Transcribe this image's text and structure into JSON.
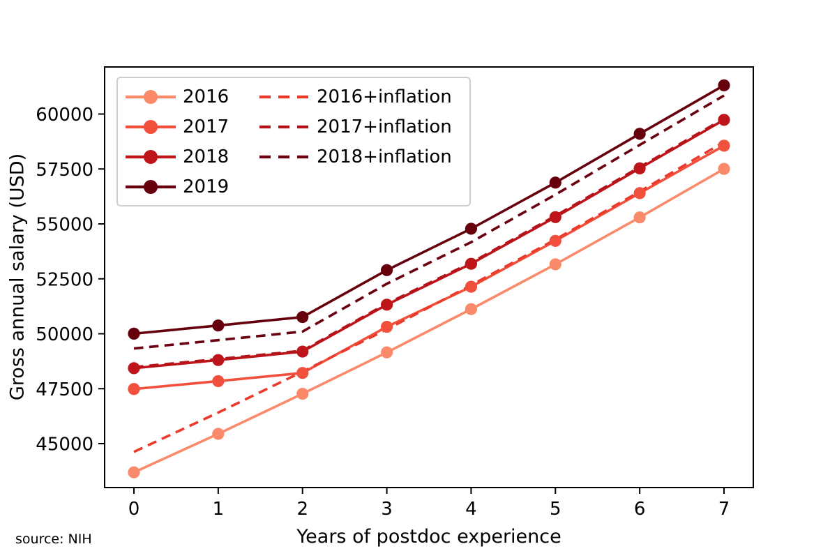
{
  "source_note": "source: NIH",
  "chart_data": {
    "type": "line",
    "title": "",
    "xlabel": "Years of postdoc experience",
    "ylabel": "Gross annual salary (USD)",
    "x": [
      0,
      1,
      2,
      3,
      4,
      5,
      6,
      7
    ],
    "x_tick_labels": [
      "0",
      "1",
      "2",
      "3",
      "4",
      "5",
      "6",
      "7"
    ],
    "y_ticks": [
      45000,
      47500,
      50000,
      52500,
      55000,
      57500,
      60000
    ],
    "y_tick_labels": [
      "45000",
      "47500",
      "50000",
      "52500",
      "55000",
      "57500",
      "60000"
    ],
    "xlim": [
      -0.3475,
      7.3475
    ],
    "ylim": [
      43000,
      62143
    ],
    "grid": false,
    "legend_position": "upper left",
    "legend_columns": [
      [
        0,
        1,
        2,
        3
      ],
      [
        4,
        5,
        6
      ]
    ],
    "series": [
      {
        "name": "2016",
        "style": "solid",
        "marker": true,
        "color": "#fb8a6a",
        "values": [
          43692,
          45444,
          47268,
          49152,
          51120,
          53160,
          55296,
          57504
        ]
      },
      {
        "name": "2017",
        "style": "solid",
        "marker": true,
        "color": "#f1503c",
        "values": [
          47484,
          47844,
          48216,
          50316,
          52140,
          54228,
          56400,
          58560
        ]
      },
      {
        "name": "2018",
        "style": "solid",
        "marker": true,
        "color": "#be151b",
        "values": [
          48432,
          48804,
          49188,
          51324,
          53184,
          55308,
          57528,
          59736
        ]
      },
      {
        "name": "2019",
        "style": "solid",
        "marker": true,
        "color": "#67000d",
        "values": [
          50004,
          50376,
          50760,
          52896,
          54780,
          56880,
          59100,
          61308
        ]
      },
      {
        "name": "2016+inflation",
        "style": "dashed",
        "marker": false,
        "color": "#e93a2c",
        "values": [
          44623,
          46412,
          48275,
          50199,
          52209,
          54292,
          56474,
          58729
        ]
      },
      {
        "name": "2017+inflation",
        "style": "dashed",
        "marker": false,
        "color": "#b5131a",
        "values": [
          48481,
          48849,
          49229,
          51373,
          53235,
          55367,
          57584,
          59790
        ]
      },
      {
        "name": "2018+inflation",
        "style": "dashed",
        "marker": false,
        "color": "#6b0110",
        "values": [
          49329,
          49708,
          50099,
          52274,
          54168,
          56332,
          58593,
          60842
        ]
      }
    ]
  }
}
